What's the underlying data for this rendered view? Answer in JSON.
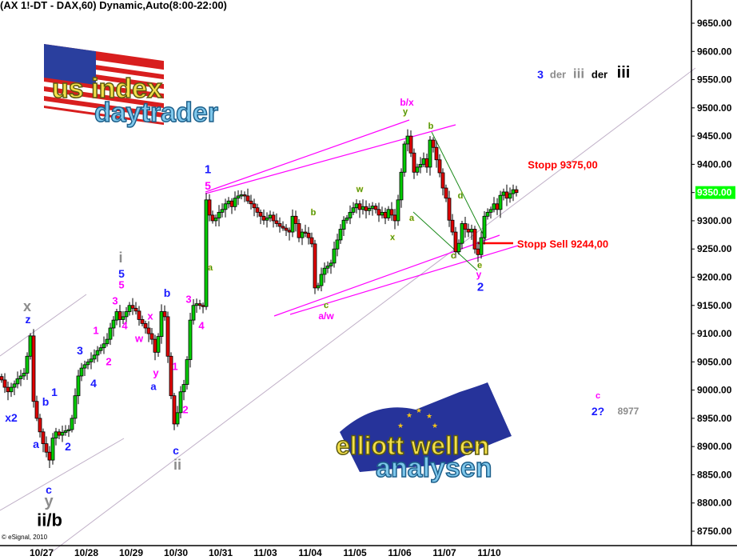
{
  "header": {
    "title": "(AX 1!-DT - DAX,60) Dynamic,Auto(8:00-22:00)"
  },
  "footer": {
    "copyright": "© eSignal, 2010"
  },
  "logos": {
    "top": {
      "line1": "us index",
      "line2": "daytrader"
    },
    "bottom": {
      "line1": "elliott wellen",
      "line2": "analysen"
    }
  },
  "colors": {
    "up": "#00cc00",
    "down": "#e00000",
    "blue": "#1a1aff",
    "magenta": "#ff00ff",
    "gray": "#8c8c8c",
    "green": "#1a8a1a",
    "red": "#ff0000",
    "last_price_bg": "#00ff00"
  },
  "chart_data": {
    "type": "candlestick",
    "title": "(AX 1!-DT - DAX,60) Dynamic,Auto(8:00-22:00)",
    "ylim": [
      8750,
      9650
    ],
    "yticks": [
      "9650.00",
      "9600.00",
      "9550.00",
      "9500.00",
      "9450.00",
      "9400.00",
      "9350.00",
      "9300.00",
      "9250.00",
      "9200.00",
      "9150.00",
      "9100.00",
      "9050.00",
      "9000.00",
      "8950.00",
      "8900.00",
      "8850.00",
      "8800.00",
      "8750.00"
    ],
    "last_price": "9350.00",
    "xticks": [
      "10/27",
      "10/28",
      "10/29",
      "10/30",
      "10/31",
      "11/03",
      "11/04",
      "11/05",
      "11/06",
      "11/07",
      "11/10"
    ],
    "grid": false,
    "closes_segment1": [
      9018,
      9005,
      8997,
      9005,
      9011,
      9020,
      9025,
      9030,
      9060,
      9096,
      8980,
      8950,
      8926,
      8905,
      8890,
      8876,
      8915,
      8926,
      8920,
      8925,
      8928,
      8930,
      8950,
      8990,
      9025,
      9039,
      9045,
      9050,
      9055,
      9062,
      9070,
      9075,
      9082,
      9090,
      9110,
      9124,
      9139,
      9125,
      9130,
      9139,
      9150,
      9145,
      9140,
      9125,
      9118,
      9110,
      9100,
      9090,
      9067,
      9095,
      9139,
      9130,
      9060,
      8990,
      8940,
      8960,
      8997,
      9010,
      9054,
      9124,
      9150,
      9153,
      9150,
      9148
    ],
    "closes_segment2": [
      9337,
      9310,
      9300,
      9305,
      9315,
      9320,
      9330,
      9335,
      9325,
      9340,
      9344,
      9346,
      9344,
      9335,
      9330,
      9323,
      9315,
      9308,
      9301,
      9305,
      9310,
      9300,
      9295,
      9290,
      9287,
      9283,
      9280,
      9308,
      9295,
      9270,
      9280,
      9278,
      9270,
      9259,
      9181,
      9185,
      9205,
      9216,
      9220,
      9225,
      9250,
      9266,
      9285,
      9301,
      9305,
      9315,
      9323,
      9330,
      9320,
      9325,
      9318,
      9322,
      9326,
      9320,
      9310,
      9315,
      9305,
      9320,
      9310,
      9300,
      9337,
      9386,
      9436,
      9450,
      9420,
      9386,
      9395,
      9400,
      9410,
      9395,
      9443,
      9430,
      9408,
      9385,
      9358,
      9340,
      9301,
      9280,
      9245,
      9260,
      9295,
      9285,
      9280,
      9285,
      9250,
      9240,
      9270,
      9308,
      9315,
      9320,
      9330,
      9320,
      9345,
      9351,
      9340,
      9348,
      9355,
      9350
    ],
    "annotations": [
      {
        "text": "x",
        "color": "gray"
      },
      {
        "text": "z",
        "color": "blue"
      },
      {
        "text": "x2",
        "color": "blue"
      },
      {
        "text": "a",
        "color": "blue"
      },
      {
        "text": "b",
        "color": "blue"
      },
      {
        "text": "1",
        "color": "blue"
      },
      {
        "text": "2",
        "color": "blue"
      },
      {
        "text": "c",
        "color": "blue"
      },
      {
        "text": "y",
        "color": "gray"
      },
      {
        "text": "ii/b",
        "color": "black"
      },
      {
        "text": "3",
        "color": "blue"
      },
      {
        "text": "4",
        "color": "blue"
      },
      {
        "text": "1",
        "color": "magenta"
      },
      {
        "text": "2",
        "color": "magenta"
      },
      {
        "text": "3",
        "color": "magenta"
      },
      {
        "text": "i",
        "color": "gray"
      },
      {
        "text": "5",
        "color": "blue"
      },
      {
        "text": "5",
        "color": "magenta"
      },
      {
        "text": "4",
        "color": "magenta"
      },
      {
        "text": "w",
        "color": "magenta"
      },
      {
        "text": "x",
        "color": "magenta"
      },
      {
        "text": "y",
        "color": "magenta"
      },
      {
        "text": "a",
        "color": "blue"
      },
      {
        "text": "b",
        "color": "blue"
      },
      {
        "text": "3",
        "color": "magenta"
      },
      {
        "text": "4",
        "color": "magenta"
      },
      {
        "text": "1",
        "color": "magenta"
      },
      {
        "text": "2",
        "color": "magenta"
      },
      {
        "text": "c",
        "color": "blue"
      },
      {
        "text": "ii",
        "color": "gray"
      },
      {
        "text": "1",
        "color": "blue"
      },
      {
        "text": "5",
        "color": "magenta"
      },
      {
        "text": "a",
        "color": "green"
      },
      {
        "text": "b",
        "color": "green"
      },
      {
        "text": "c",
        "color": "green"
      },
      {
        "text": "a/w",
        "color": "magenta"
      },
      {
        "text": "w",
        "color": "green"
      },
      {
        "text": "x",
        "color": "green"
      },
      {
        "text": "b/x",
        "color": "magenta"
      },
      {
        "text": "y",
        "color": "green"
      },
      {
        "text": "a",
        "color": "green"
      },
      {
        "text": "b",
        "color": "green"
      },
      {
        "text": "d",
        "color": "green"
      },
      {
        "text": "c",
        "color": "green"
      },
      {
        "text": "e",
        "color": "green"
      },
      {
        "text": "y",
        "color": "magenta"
      },
      {
        "text": "2",
        "color": "blue"
      },
      {
        "text": "3",
        "color": "blue"
      },
      {
        "text": "der",
        "color": "gray"
      },
      {
        "text": "iii",
        "color": "gray"
      },
      {
        "text": "der",
        "color": "black"
      },
      {
        "text": "iii",
        "color": "black"
      },
      {
        "text": "c",
        "color": "magenta"
      },
      {
        "text": "2?",
        "color": "blue"
      },
      {
        "text": "8977",
        "color": "gray"
      },
      {
        "text": "Stopp 9375,00",
        "color": "red"
      },
      {
        "text": "Stopp Sell 9244,00",
        "color": "red"
      }
    ]
  }
}
